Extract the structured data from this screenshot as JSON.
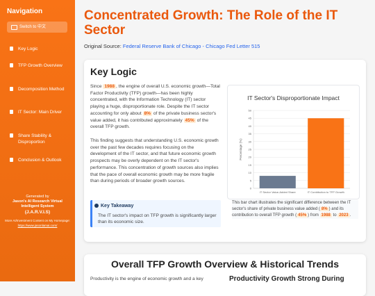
{
  "sidebar": {
    "title": "Navigation",
    "language_button": "Switch to 中文",
    "nav_items": [
      "Key Logic",
      "TFP Growth Overview",
      "Decomposition Method",
      "IT Sector: Main Driver",
      "Share Stability & Disproportion",
      "Conclusion & Outlook"
    ],
    "footer": {
      "generated_by": "Generated by",
      "system_name": "Jason's AI Research Virtual Intelligent System",
      "system_short": "(J.A.R.V.I.S)",
      "more": "More AI/Investment Content on My Homepage:",
      "link": "https://www.jasonlamai.com/"
    }
  },
  "header": {
    "title": "Concentrated Growth: The Role of the IT Sector",
    "source_label": "Original Source:",
    "source_link": "Federal Reserve Bank of Chicago - Chicago Fed Letter 515"
  },
  "key_logic": {
    "heading": "Key Logic",
    "paragraphs": [
      [
        "Since ",
        "1988",
        ", the engine of overall U.S. economic growth—Total Factor Productivity (TFP) growth—has been highly concentrated, with the Information Technology (IT) sector playing a huge, disproportionate role. Despite the IT sector accounting for only about ",
        "8%",
        " of the private business sector's value added, it has contributed approximately ",
        "45%",
        " of the overall TFP growth."
      ],
      [
        "This finding suggests that understanding U.S. economic growth over the past few decades requires focusing on the development of the IT sector, and that future economic growth prospects may be overly dependent on the IT sector's performance. This concentration of growth sources also implies that the pace of overall economic growth may be more fragile than during periods of broader growth sources."
      ]
    ],
    "takeaway": {
      "title": "Key Takeaway",
      "text": "The IT sector's impact on TFP growth is significantly larger than its economic size."
    },
    "chart_caption": [
      "This bar chart illustrates the significant difference between the IT sector's share of private business value added (",
      "8%",
      ") and its contribution to overall TFP growth (",
      "45%",
      ") from ",
      "1988",
      " to ",
      "2023",
      "."
    ]
  },
  "chart_data": {
    "type": "bar",
    "title": "IT Sector's Disproportionate Impact",
    "y_label": "Percentage (%)",
    "categories": [
      "IT Sector Value-Added Share",
      "IT Contribution to TFP Growth"
    ],
    "values": [
      8,
      45
    ],
    "colors": [
      "#6b7a90",
      "#f97316"
    ],
    "ylim": [
      0,
      50
    ],
    "yticks": [
      0,
      5,
      10,
      15,
      20,
      25,
      30,
      35,
      40,
      45,
      50
    ],
    "grid": true
  },
  "overview": {
    "heading": "Overall TFP Growth Overview & Historical Trends",
    "intro": "Productivity is the engine of economic growth and a key",
    "subheading": "Productivity Growth Strong During"
  }
}
